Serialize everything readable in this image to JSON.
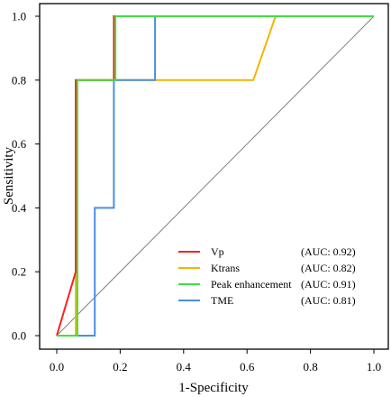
{
  "chart_data": {
    "type": "line",
    "title": "",
    "xlabel": "1-Specificity",
    "ylabel": "Sensitivity",
    "xlim": [
      0.0,
      1.0
    ],
    "ylim": [
      0.0,
      1.0
    ],
    "xticks": [
      "0.0",
      "0.2",
      "0.4",
      "0.6",
      "0.8",
      "1.0"
    ],
    "yticks": [
      "0.0",
      "0.2",
      "0.4",
      "0.6",
      "0.8",
      "1.0"
    ],
    "grid": false,
    "legend_position": "bottom-right",
    "reference_line": {
      "type": "diagonal",
      "color": "#808080",
      "points": [
        [
          0,
          0
        ],
        [
          1,
          1
        ]
      ]
    },
    "series": [
      {
        "name": "Vp",
        "auc_label": "(AUC: 0.92)",
        "color": "#ff2020",
        "points": [
          [
            0,
            0
          ],
          [
            0.06,
            0.2
          ],
          [
            0.06,
            0.8
          ],
          [
            0.18,
            0.8
          ],
          [
            0.18,
            1.0
          ],
          [
            1.0,
            1.0
          ]
        ]
      },
      {
        "name": "Ktrans",
        "auc_label": "(AUC: 0.82)",
        "color": "#f5b400",
        "points": [
          [
            0,
            0
          ],
          [
            0.06,
            0
          ],
          [
            0.06,
            0.8
          ],
          [
            0.18,
            0.8
          ],
          [
            0.18,
            0.8
          ],
          [
            0.62,
            0.8
          ],
          [
            0.69,
            1.0
          ],
          [
            1.0,
            1.0
          ]
        ]
      },
      {
        "name": "Peak enhancement",
        "auc_label": "(AUC: 0.91)",
        "color": "#40e040",
        "points": [
          [
            0,
            0
          ],
          [
            0.065,
            0
          ],
          [
            0.065,
            0.8
          ],
          [
            0.185,
            0.8
          ],
          [
            0.185,
            1.0
          ],
          [
            1.0,
            1.0
          ]
        ]
      },
      {
        "name": "TME",
        "auc_label": "(AUC: 0.81)",
        "color": "#4a8fe0",
        "points": [
          [
            0,
            0
          ],
          [
            0.12,
            0
          ],
          [
            0.12,
            0.4
          ],
          [
            0.18,
            0.4
          ],
          [
            0.18,
            0.8
          ],
          [
            0.31,
            0.8
          ],
          [
            0.31,
            1.0
          ],
          [
            1.0,
            1.0
          ]
        ]
      }
    ]
  }
}
